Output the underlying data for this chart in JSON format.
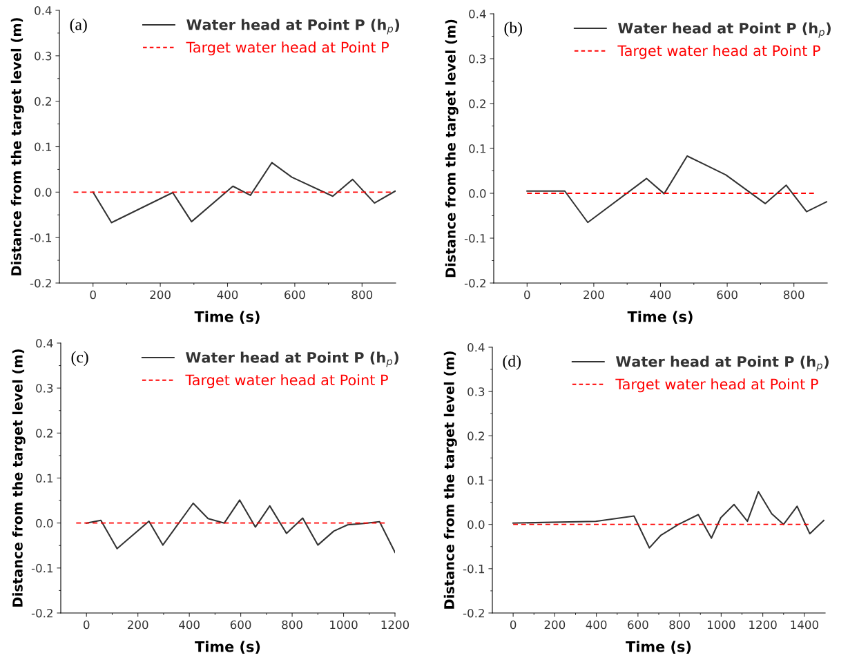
{
  "chart_data": [
    {
      "type": "line",
      "annotations": [
        "(a)"
      ],
      "xlabel": "Time (s)",
      "ylabel": "Distance from the target level (m)",
      "xlim": [
        -100,
        900
      ],
      "xticks": [
        0,
        200,
        400,
        600,
        800
      ],
      "ylim": [
        -0.2,
        0.4
      ],
      "yticks": [
        {
          "value": -0.2,
          "label": "-0.2"
        },
        {
          "value": -0.1,
          "label": "-0.1"
        },
        {
          "value": 0,
          "label": "0.0"
        },
        {
          "value": 0.1,
          "label": "0.1"
        },
        {
          "value": 0.2,
          "label": "0.2"
        },
        {
          "value": 0.3,
          "label": "0.3"
        },
        {
          "value": 0.4,
          "label": "0.4"
        }
      ],
      "legend": "top right",
      "grid": false,
      "series": [
        {
          "name": "Water head at Point P (h$_{p}$)",
          "color": "#333333",
          "line_style": "solid",
          "x": [
            0,
            55,
            237,
            293,
            416,
            468,
            532,
            591,
            713,
            772,
            837,
            898
          ],
          "values": [
            0,
            -0.067,
            -0.001,
            -0.065,
            0.013,
            -0.007,
            0.065,
            0.033,
            -0.009,
            0.028,
            -0.024,
            0.002
          ]
        },
        {
          "name": "Target water head at Point P",
          "color": "#ff0000",
          "line_style": "dashed",
          "x": [
            -58,
            885
          ],
          "values": [
            0,
            0
          ]
        }
      ]
    },
    {
      "type": "line",
      "annotations": [
        "(b)"
      ],
      "xlabel": "Time (s)",
      "ylabel": "Distance from the target level (m)",
      "xlim": [
        -100,
        900
      ],
      "xticks": [
        0,
        200,
        400,
        600,
        800
      ],
      "ylim": [
        -0.2,
        0.4
      ],
      "yticks": [
        {
          "value": -0.2,
          "label": "-0.2"
        },
        {
          "value": -0.1,
          "label": "-0.1"
        },
        {
          "value": 0,
          "label": "0.0"
        },
        {
          "value": 0.1,
          "label": "0.1"
        },
        {
          "value": 0.2,
          "label": "0.2"
        },
        {
          "value": 0.3,
          "label": "0.3"
        },
        {
          "value": 0.4,
          "label": "0.4"
        }
      ],
      "legend": "top right",
      "grid": false,
      "series": [
        {
          "name": "Water head at Point P (h$_{p}$)",
          "color": "#333333",
          "line_style": "solid",
          "x": [
            0,
            113,
            182,
            358,
            411,
            480,
            596,
            714,
            777,
            838,
            898
          ],
          "values": [
            0.005,
            0.005,
            -0.065,
            0.033,
            -0.001,
            0.083,
            0.041,
            -0.023,
            0.018,
            -0.041,
            -0.019
          ]
        },
        {
          "name": "Target water head at Point P",
          "color": "#ff0000",
          "line_style": "dashed",
          "x": [
            0,
            860
          ],
          "values": [
            0,
            0
          ]
        }
      ]
    },
    {
      "type": "line",
      "annotations": [
        "(c)"
      ],
      "xlabel": "Time (s)",
      "ylabel": "Distance from the target level (m)",
      "xlim": [
        -100,
        1200
      ],
      "xticks": [
        0,
        200,
        400,
        600,
        800,
        1000,
        1200
      ],
      "ylim": [
        -0.2,
        0.4
      ],
      "yticks": [
        {
          "value": -0.2,
          "label": "-0.2"
        },
        {
          "value": -0.1,
          "label": "-0.1"
        },
        {
          "value": 0,
          "label": "0.0"
        },
        {
          "value": 0.1,
          "label": "0.1"
        },
        {
          "value": 0.2,
          "label": "0.2"
        },
        {
          "value": 0.3,
          "label": "0.3"
        },
        {
          "value": 0.4,
          "label": "0.4"
        }
      ],
      "legend": "top right",
      "grid": false,
      "series": [
        {
          "name": "Water head at Point P (h$_{p}$)",
          "color": "#333333",
          "line_style": "solid",
          "x": [
            0,
            56,
            119,
            243,
            297,
            415,
            473,
            536,
            596,
            657,
            713,
            778,
            841,
            900,
            962,
            1016,
            1080,
            1140,
            1200
          ],
          "values": [
            0,
            0.006,
            -0.057,
            0.004,
            -0.049,
            0.044,
            0.01,
            0,
            0.051,
            -0.009,
            0.038,
            -0.023,
            0.011,
            -0.049,
            -0.018,
            -0.004,
            -0.001,
            0.003,
            -0.065
          ]
        },
        {
          "name": "Target water head at Point P",
          "color": "#ff0000",
          "line_style": "dashed",
          "x": [
            -40,
            1160
          ],
          "values": [
            0,
            0
          ]
        }
      ]
    },
    {
      "type": "line",
      "annotations": [
        "(d)"
      ],
      "xlabel": "Time (s)",
      "ylabel": "Distance from the target level (m)",
      "xlim": [
        -100,
        1500
      ],
      "xticks": [
        0,
        200,
        400,
        600,
        800,
        1000,
        1200,
        1400
      ],
      "ylim": [
        -0.2,
        0.4
      ],
      "yticks": [
        {
          "value": -0.2,
          "label": "-0.2"
        },
        {
          "value": -0.1,
          "label": "-0.1"
        },
        {
          "value": 0,
          "label": "0.0"
        },
        {
          "value": 0.1,
          "label": "0.1"
        },
        {
          "value": 0.2,
          "label": "0.2"
        },
        {
          "value": 0.3,
          "label": "0.3"
        },
        {
          "value": 0.4,
          "label": "0.4"
        }
      ],
      "legend": "top right",
      "grid": false,
      "series": [
        {
          "name": "Water head at Point P (h$_{p}$)",
          "color": "#333333",
          "line_style": "solid",
          "x": [
            0,
            397,
            581,
            655,
            709,
            795,
            890,
            953,
            998,
            1062,
            1126,
            1179,
            1243,
            1300,
            1365,
            1426,
            1493
          ],
          "values": [
            0.003,
            0.007,
            0.019,
            -0.053,
            -0.025,
            0,
            0.022,
            -0.031,
            0.015,
            0.045,
            0.007,
            0.074,
            0.024,
            0,
            0.041,
            -0.021,
            0.009
          ]
        },
        {
          "name": "Target water head at Point P",
          "color": "#ff0000",
          "line_style": "dashed",
          "x": [
            0,
            1420
          ],
          "values": [
            0,
            0
          ]
        }
      ]
    }
  ]
}
